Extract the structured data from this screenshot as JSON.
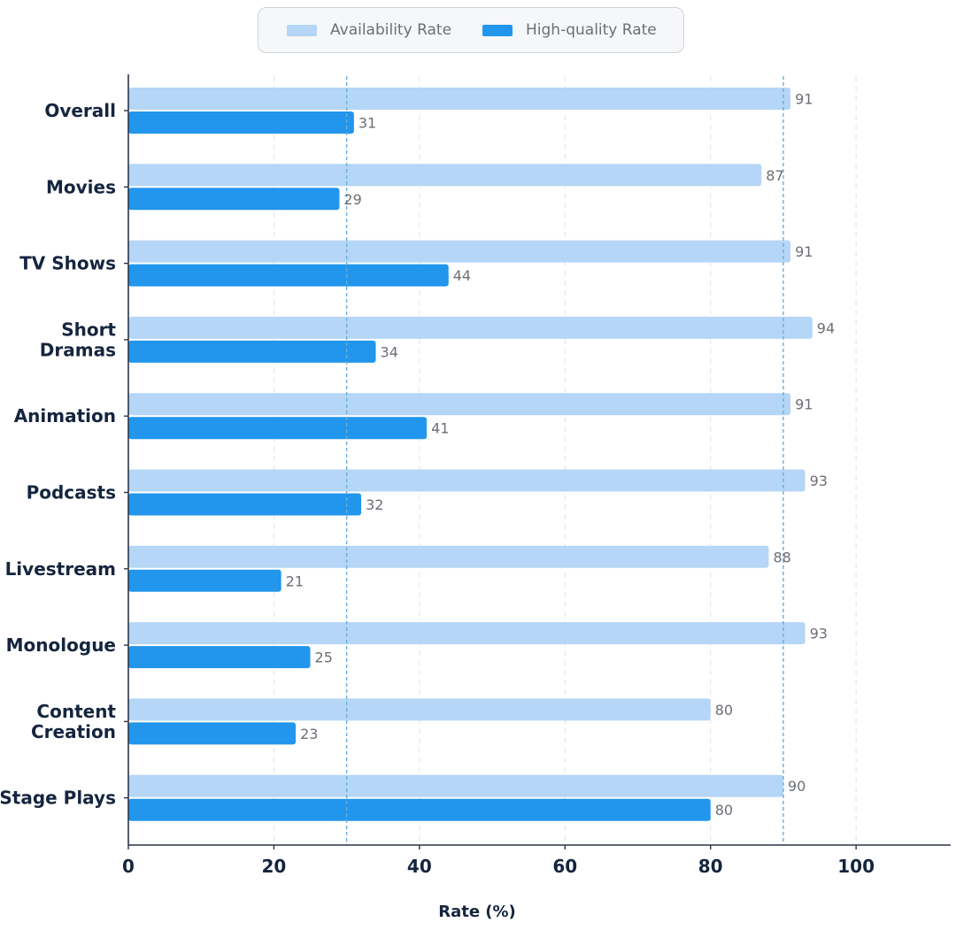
{
  "legend": {
    "items": [
      {
        "label": "Availability Rate",
        "color": "#b5d6f6"
      },
      {
        "label": "High-quality Rate",
        "color": "#2196ec"
      }
    ]
  },
  "chart_data": {
    "type": "bar",
    "orientation": "horizontal",
    "categories": [
      [
        "Overall"
      ],
      [
        "Movies"
      ],
      [
        "TV Shows"
      ],
      [
        "Short",
        "Dramas"
      ],
      [
        "Animation"
      ],
      [
        "Podcasts"
      ],
      [
        "Livestream"
      ],
      [
        "Monologue"
      ],
      [
        "Content",
        "Creation"
      ],
      [
        "Stage Plays"
      ]
    ],
    "series": [
      {
        "name": "Availability Rate",
        "color": "#b5d6f6",
        "values": [
          91,
          87,
          91,
          94,
          91,
          93,
          88,
          93,
          80,
          90
        ]
      },
      {
        "name": "High-quality Rate",
        "color": "#2196ec",
        "values": [
          31,
          29,
          44,
          34,
          41,
          32,
          21,
          25,
          23,
          80
        ]
      }
    ],
    "xlabel": "Rate (%)",
    "xlim": [
      0,
      113
    ],
    "xticks": [
      0,
      20,
      40,
      60,
      80,
      100
    ],
    "reference_lines": [
      30,
      90
    ],
    "grid": "vertical dashed",
    "legend_position": "top-center"
  }
}
